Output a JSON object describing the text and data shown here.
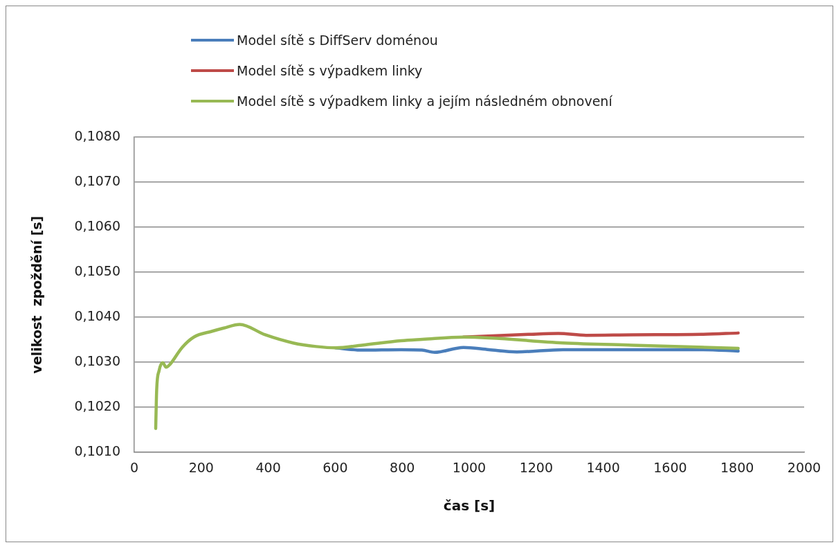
{
  "chart_data": {
    "type": "line",
    "xlabel": "čas [s]",
    "ylabel": "velikost  zpoždění [s]",
    "xlim": [
      0,
      2000
    ],
    "xticks": [
      0,
      200,
      400,
      600,
      800,
      1000,
      1200,
      1400,
      1600,
      1800,
      2000
    ],
    "ylim": [
      0.101,
      0.108
    ],
    "yticks": [
      {
        "value": 0.101,
        "label": "0,1010"
      },
      {
        "value": 0.102,
        "label": "0,1020"
      },
      {
        "value": 0.103,
        "label": "0,1030"
      },
      {
        "value": 0.104,
        "label": "0,1040"
      },
      {
        "value": 0.105,
        "label": "0,1050"
      },
      {
        "value": 0.106,
        "label": "0,1060"
      },
      {
        "value": 0.107,
        "label": "0,1070"
      },
      {
        "value": 0.108,
        "label": "0,1080"
      }
    ],
    "grid": "y",
    "legend": "top",
    "marker": "none",
    "line_style": "solid",
    "series": [
      {
        "name": "Model sítě s DiffServ doménou",
        "color": "#4a7ebb",
        "x": [
          601,
          680,
          797,
          859,
          897,
          983,
          1059,
          1142,
          1280,
          1693,
          1803
        ],
        "values": [
          0.10332,
          0.10327,
          0.10328,
          0.10327,
          0.10322,
          0.10333,
          0.10328,
          0.10323,
          0.10328,
          0.10328,
          0.10325
        ]
      },
      {
        "name": "Model sítě s výpadkem linky",
        "color": "#be4b48",
        "x": [
          983,
          1177,
          1266,
          1349,
          1486,
          1693,
          1803
        ],
        "values": [
          0.10356,
          0.10362,
          0.10364,
          0.1036,
          0.10361,
          0.10362,
          0.10365
        ]
      },
      {
        "name": "Model sítě s výpadkem linky a jejím následném obnovení",
        "color": "#98b954",
        "x": [
          64,
          67,
          74,
          85,
          95,
          105,
          143,
          178,
          233,
          267,
          315,
          391,
          474,
          543,
          601,
          680,
          797,
          860,
          983,
          1280,
          1486,
          1803
        ],
        "values": [
          0.10153,
          0.1024,
          0.10281,
          0.10299,
          0.10289,
          0.10294,
          0.10333,
          0.10356,
          0.10369,
          0.10376,
          0.10384,
          0.10361,
          0.10343,
          0.10335,
          0.10332,
          0.10338,
          0.10348,
          0.10351,
          0.10356,
          0.10343,
          0.10338,
          0.10331
        ]
      }
    ]
  }
}
